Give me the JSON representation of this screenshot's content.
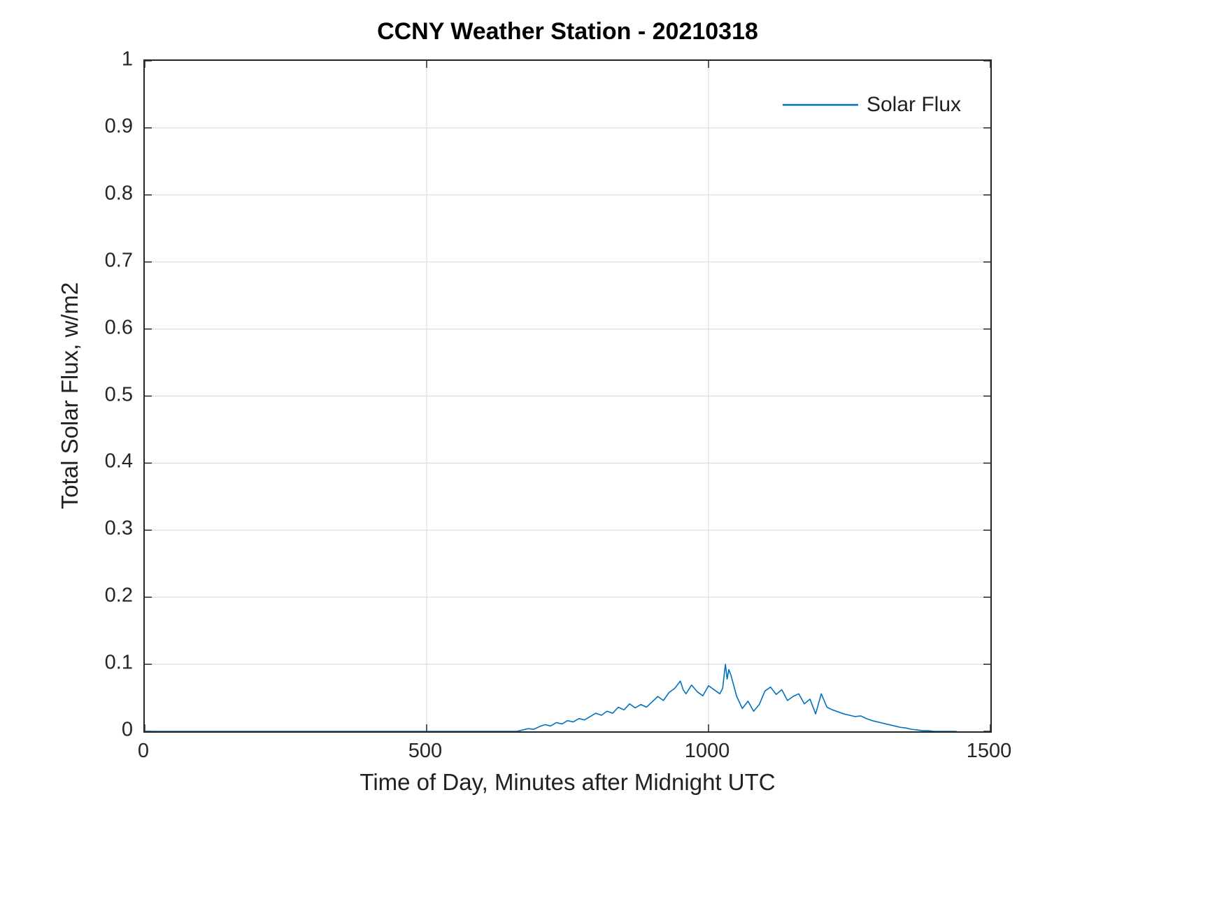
{
  "chart_data": {
    "type": "line",
    "title": "CCNY Weather Station - 20210318",
    "xlabel": "Time of Day, Minutes after Midnight UTC",
    "ylabel": "Total Solar Flux, w/m2",
    "xlim": [
      0,
      1500
    ],
    "ylim": [
      0,
      1
    ],
    "x_ticks": [
      0,
      500,
      1000,
      1500
    ],
    "x_tick_labels": [
      "0",
      "500",
      "1000",
      "1500"
    ],
    "y_ticks": [
      0,
      0.1,
      0.2,
      0.3,
      0.4,
      0.5,
      0.6,
      0.7,
      0.8,
      0.9,
      1
    ],
    "y_tick_labels": [
      "0",
      "0.1",
      "0.2",
      "0.3",
      "0.4",
      "0.5",
      "0.6",
      "0.7",
      "0.8",
      "0.9",
      "1"
    ],
    "grid": true,
    "legend": {
      "position": "northeast",
      "entries": [
        "Solar Flux"
      ]
    },
    "colors": {
      "line": "#0072BD",
      "grid": "#dedede",
      "axis": "#262626",
      "text": "#212121",
      "title": "#000000"
    },
    "series": [
      {
        "name": "Solar Flux",
        "color": "#0072BD",
        "x": [
          0,
          100,
          200,
          300,
          400,
          500,
          600,
          650,
          660,
          670,
          680,
          690,
          700,
          710,
          720,
          730,
          740,
          750,
          760,
          770,
          780,
          790,
          800,
          810,
          820,
          830,
          840,
          850,
          860,
          870,
          880,
          890,
          900,
          910,
          920,
          930,
          940,
          950,
          955,
          960,
          970,
          980,
          990,
          1000,
          1010,
          1020,
          1025,
          1030,
          1033,
          1036,
          1040,
          1050,
          1060,
          1070,
          1080,
          1090,
          1100,
          1110,
          1120,
          1130,
          1140,
          1150,
          1160,
          1170,
          1180,
          1190,
          1200,
          1210,
          1220,
          1230,
          1240,
          1250,
          1260,
          1270,
          1280,
          1290,
          1300,
          1310,
          1320,
          1330,
          1340,
          1350,
          1360,
          1370,
          1380,
          1390,
          1400,
          1440
        ],
        "y": [
          0,
          0,
          0,
          0,
          0,
          0,
          0,
          0,
          0,
          0.002,
          0.004,
          0.003,
          0.007,
          0.01,
          0.008,
          0.013,
          0.011,
          0.016,
          0.014,
          0.019,
          0.017,
          0.022,
          0.027,
          0.024,
          0.03,
          0.027,
          0.036,
          0.032,
          0.041,
          0.035,
          0.04,
          0.036,
          0.044,
          0.052,
          0.046,
          0.058,
          0.064,
          0.075,
          0.062,
          0.056,
          0.069,
          0.059,
          0.053,
          0.068,
          0.062,
          0.056,
          0.064,
          0.1,
          0.078,
          0.092,
          0.083,
          0.052,
          0.034,
          0.045,
          0.03,
          0.04,
          0.06,
          0.066,
          0.055,
          0.062,
          0.046,
          0.052,
          0.056,
          0.041,
          0.048,
          0.026,
          0.056,
          0.036,
          0.032,
          0.029,
          0.026,
          0.024,
          0.022,
          0.023,
          0.019,
          0.016,
          0.014,
          0.012,
          0.01,
          0.008,
          0.006,
          0.005,
          0.003,
          0.002,
          0.001,
          0.001,
          0,
          0
        ]
      }
    ]
  }
}
